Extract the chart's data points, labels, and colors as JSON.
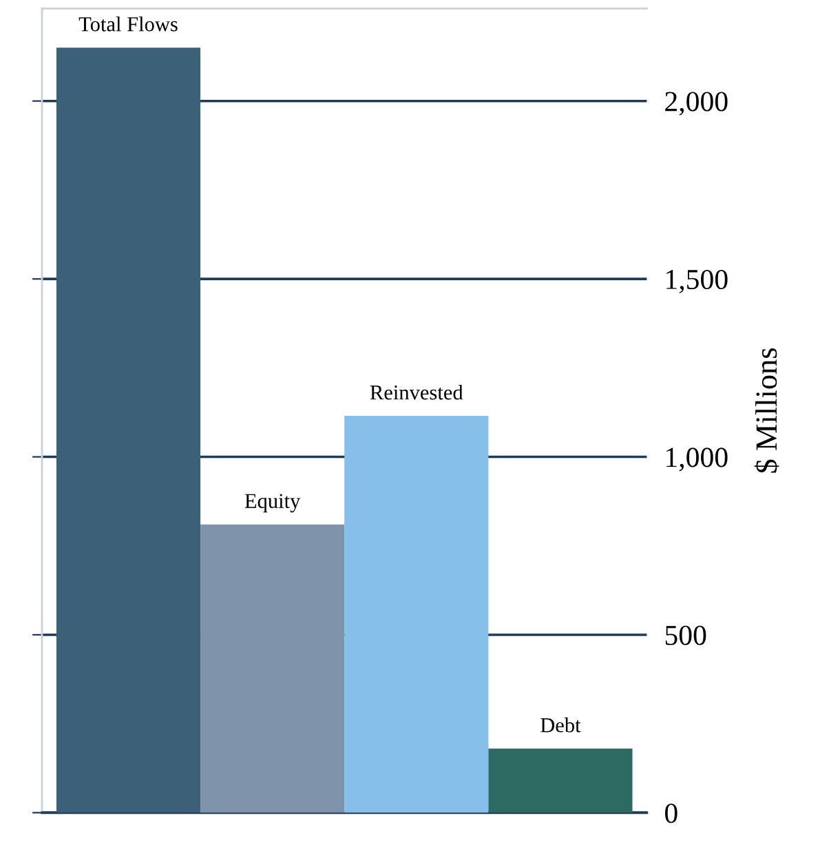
{
  "chart_data": {
    "type": "bar",
    "ylabel": "$ Millions",
    "categories": [
      "Total Flows",
      "Equity",
      "Reinvested",
      "Debt"
    ],
    "values": [
      2150,
      810,
      1115,
      180
    ],
    "colors": [
      "#3d6079",
      "#7f93aa",
      "#85bfea",
      "#2d6b62"
    ],
    "ylim": [
      0,
      2260
    ],
    "yticks": [
      0,
      500,
      {
        "value": 1000,
        "label": "1,000"
      },
      {
        "value": 1500,
        "label": "1,500"
      },
      {
        "value": 2000,
        "label": "2,000"
      }
    ],
    "grid": "y",
    "legend": false
  }
}
